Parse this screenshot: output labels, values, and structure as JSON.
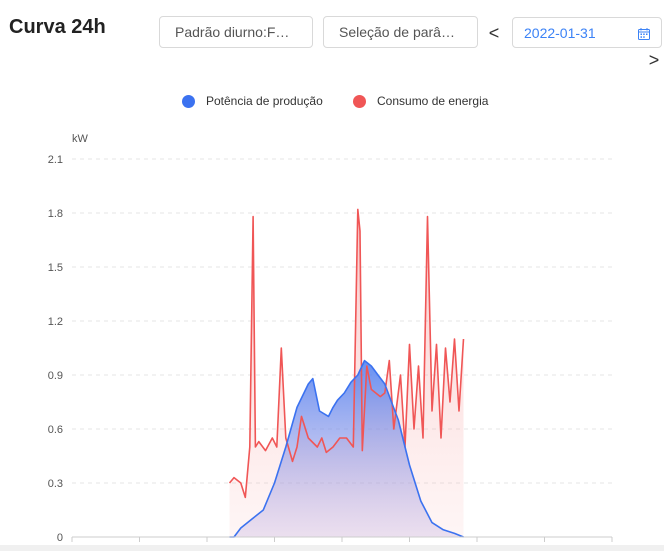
{
  "header": {
    "title": "Curva 24h",
    "mode_select": "Padrão diurno:Fec...",
    "param_select": "Seleção de parâm...",
    "date": "2022-01-31",
    "prev_label": "<",
    "next_label": ">"
  },
  "icons": {
    "calendar": "calendar-icon"
  },
  "colors": {
    "production": "#3b72f0",
    "consumption": "#f05656"
  },
  "chart_data": {
    "type": "area",
    "ylabel": "kW",
    "ylim": [
      0,
      2.1
    ],
    "yticks": [
      "0",
      "0.3",
      "0.6",
      "0.9",
      "1.2",
      "1.5",
      "1.8",
      "2.1"
    ],
    "grid": true,
    "legend_position": "top",
    "series": [
      {
        "name": "Potência de produção",
        "x": [
          7.0,
          7.2,
          7.5,
          8.0,
          8.5,
          9.0,
          9.5,
          10.0,
          10.5,
          10.7,
          11.0,
          11.4,
          11.6,
          11.8,
          12.1,
          12.4,
          12.7,
          13.0,
          13.3,
          13.6,
          13.9,
          14.2,
          14.5,
          15.0,
          15.5,
          16.0,
          16.5,
          17.0,
          17.4
        ],
        "values": [
          0,
          0,
          0.05,
          0.1,
          0.15,
          0.3,
          0.5,
          0.72,
          0.85,
          0.88,
          0.7,
          0.67,
          0.72,
          0.76,
          0.8,
          0.86,
          0.9,
          0.98,
          0.95,
          0.9,
          0.85,
          0.75,
          0.65,
          0.4,
          0.2,
          0.08,
          0.04,
          0.02,
          0.0
        ]
      },
      {
        "name": "Consumo de energia",
        "x": [
          7.0,
          7.2,
          7.5,
          7.7,
          7.9,
          8.05,
          8.15,
          8.3,
          8.6,
          8.9,
          9.1,
          9.3,
          9.5,
          9.8,
          10.0,
          10.2,
          10.5,
          10.9,
          11.1,
          11.3,
          11.6,
          11.9,
          12.2,
          12.5,
          12.7,
          12.8,
          12.9,
          13.1,
          13.3,
          13.5,
          13.7,
          13.9,
          14.1,
          14.3,
          14.6,
          14.8,
          15.0,
          15.2,
          15.4,
          15.6,
          15.8,
          16.0,
          16.2,
          16.4,
          16.6,
          16.8,
          17.0,
          17.2,
          17.4
        ],
        "values": [
          0.3,
          0.33,
          0.3,
          0.22,
          0.5,
          1.78,
          0.5,
          0.53,
          0.48,
          0.55,
          0.5,
          1.05,
          0.55,
          0.42,
          0.5,
          0.67,
          0.55,
          0.5,
          0.55,
          0.47,
          0.5,
          0.55,
          0.55,
          0.5,
          1.82,
          1.7,
          0.48,
          0.95,
          0.82,
          0.8,
          0.78,
          0.8,
          0.98,
          0.6,
          0.9,
          0.5,
          1.07,
          0.6,
          0.95,
          0.55,
          1.78,
          0.7,
          1.07,
          0.55,
          1.05,
          0.75,
          1.1,
          0.7,
          1.1
        ]
      }
    ]
  }
}
